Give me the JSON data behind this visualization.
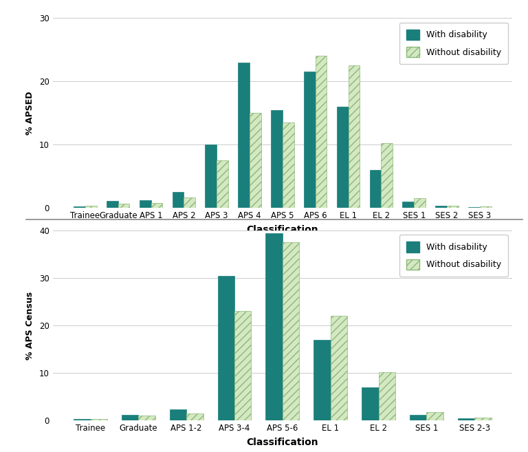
{
  "chart1": {
    "categories": [
      "Trainee",
      "Graduate",
      "APS 1",
      "APS 2",
      "APS 3",
      "APS 4",
      "APS 5",
      "APS 6",
      "EL 1",
      "EL 2",
      "SES 1",
      "SES 2",
      "SES 3"
    ],
    "with_disability": [
      0.2,
      1.1,
      1.2,
      2.5,
      10.0,
      23.0,
      15.5,
      21.5,
      16.0,
      6.0,
      1.0,
      0.4,
      0.1
    ],
    "without_disability": [
      0.4,
      0.7,
      0.8,
      1.7,
      7.5,
      15.0,
      13.5,
      24.0,
      22.5,
      10.2,
      1.5,
      0.3,
      0.2
    ],
    "ylabel": "% APSED",
    "xlabel": "Classification",
    "ylim": [
      0,
      30
    ],
    "yticks": [
      0,
      10,
      20,
      30
    ]
  },
  "chart2": {
    "categories": [
      "Trainee",
      "Graduate",
      "APS 1-2",
      "APS 3-4",
      "APS 5-6",
      "EL 1",
      "EL 2",
      "SES 1",
      "SES 2-3"
    ],
    "with_disability": [
      0.3,
      1.1,
      2.3,
      30.5,
      39.5,
      17.0,
      7.0,
      1.2,
      0.5
    ],
    "without_disability": [
      0.3,
      1.0,
      1.5,
      23.0,
      37.5,
      22.0,
      10.2,
      1.7,
      0.6
    ],
    "ylabel": "% APS Census",
    "xlabel": "Classification",
    "ylim": [
      0,
      40
    ],
    "yticks": [
      0,
      10,
      20,
      30,
      40
    ]
  },
  "color_with": "#1a7f7a",
  "color_without_face": "#d4e8c2",
  "color_without_edge": "#8ab87a",
  "hatch": "///",
  "bar_width": 0.35,
  "legend_with": "With disability",
  "legend_without": "Without disability",
  "bg_color": "#ffffff",
  "grid_color": "#cccccc",
  "separator_color": "#888888"
}
